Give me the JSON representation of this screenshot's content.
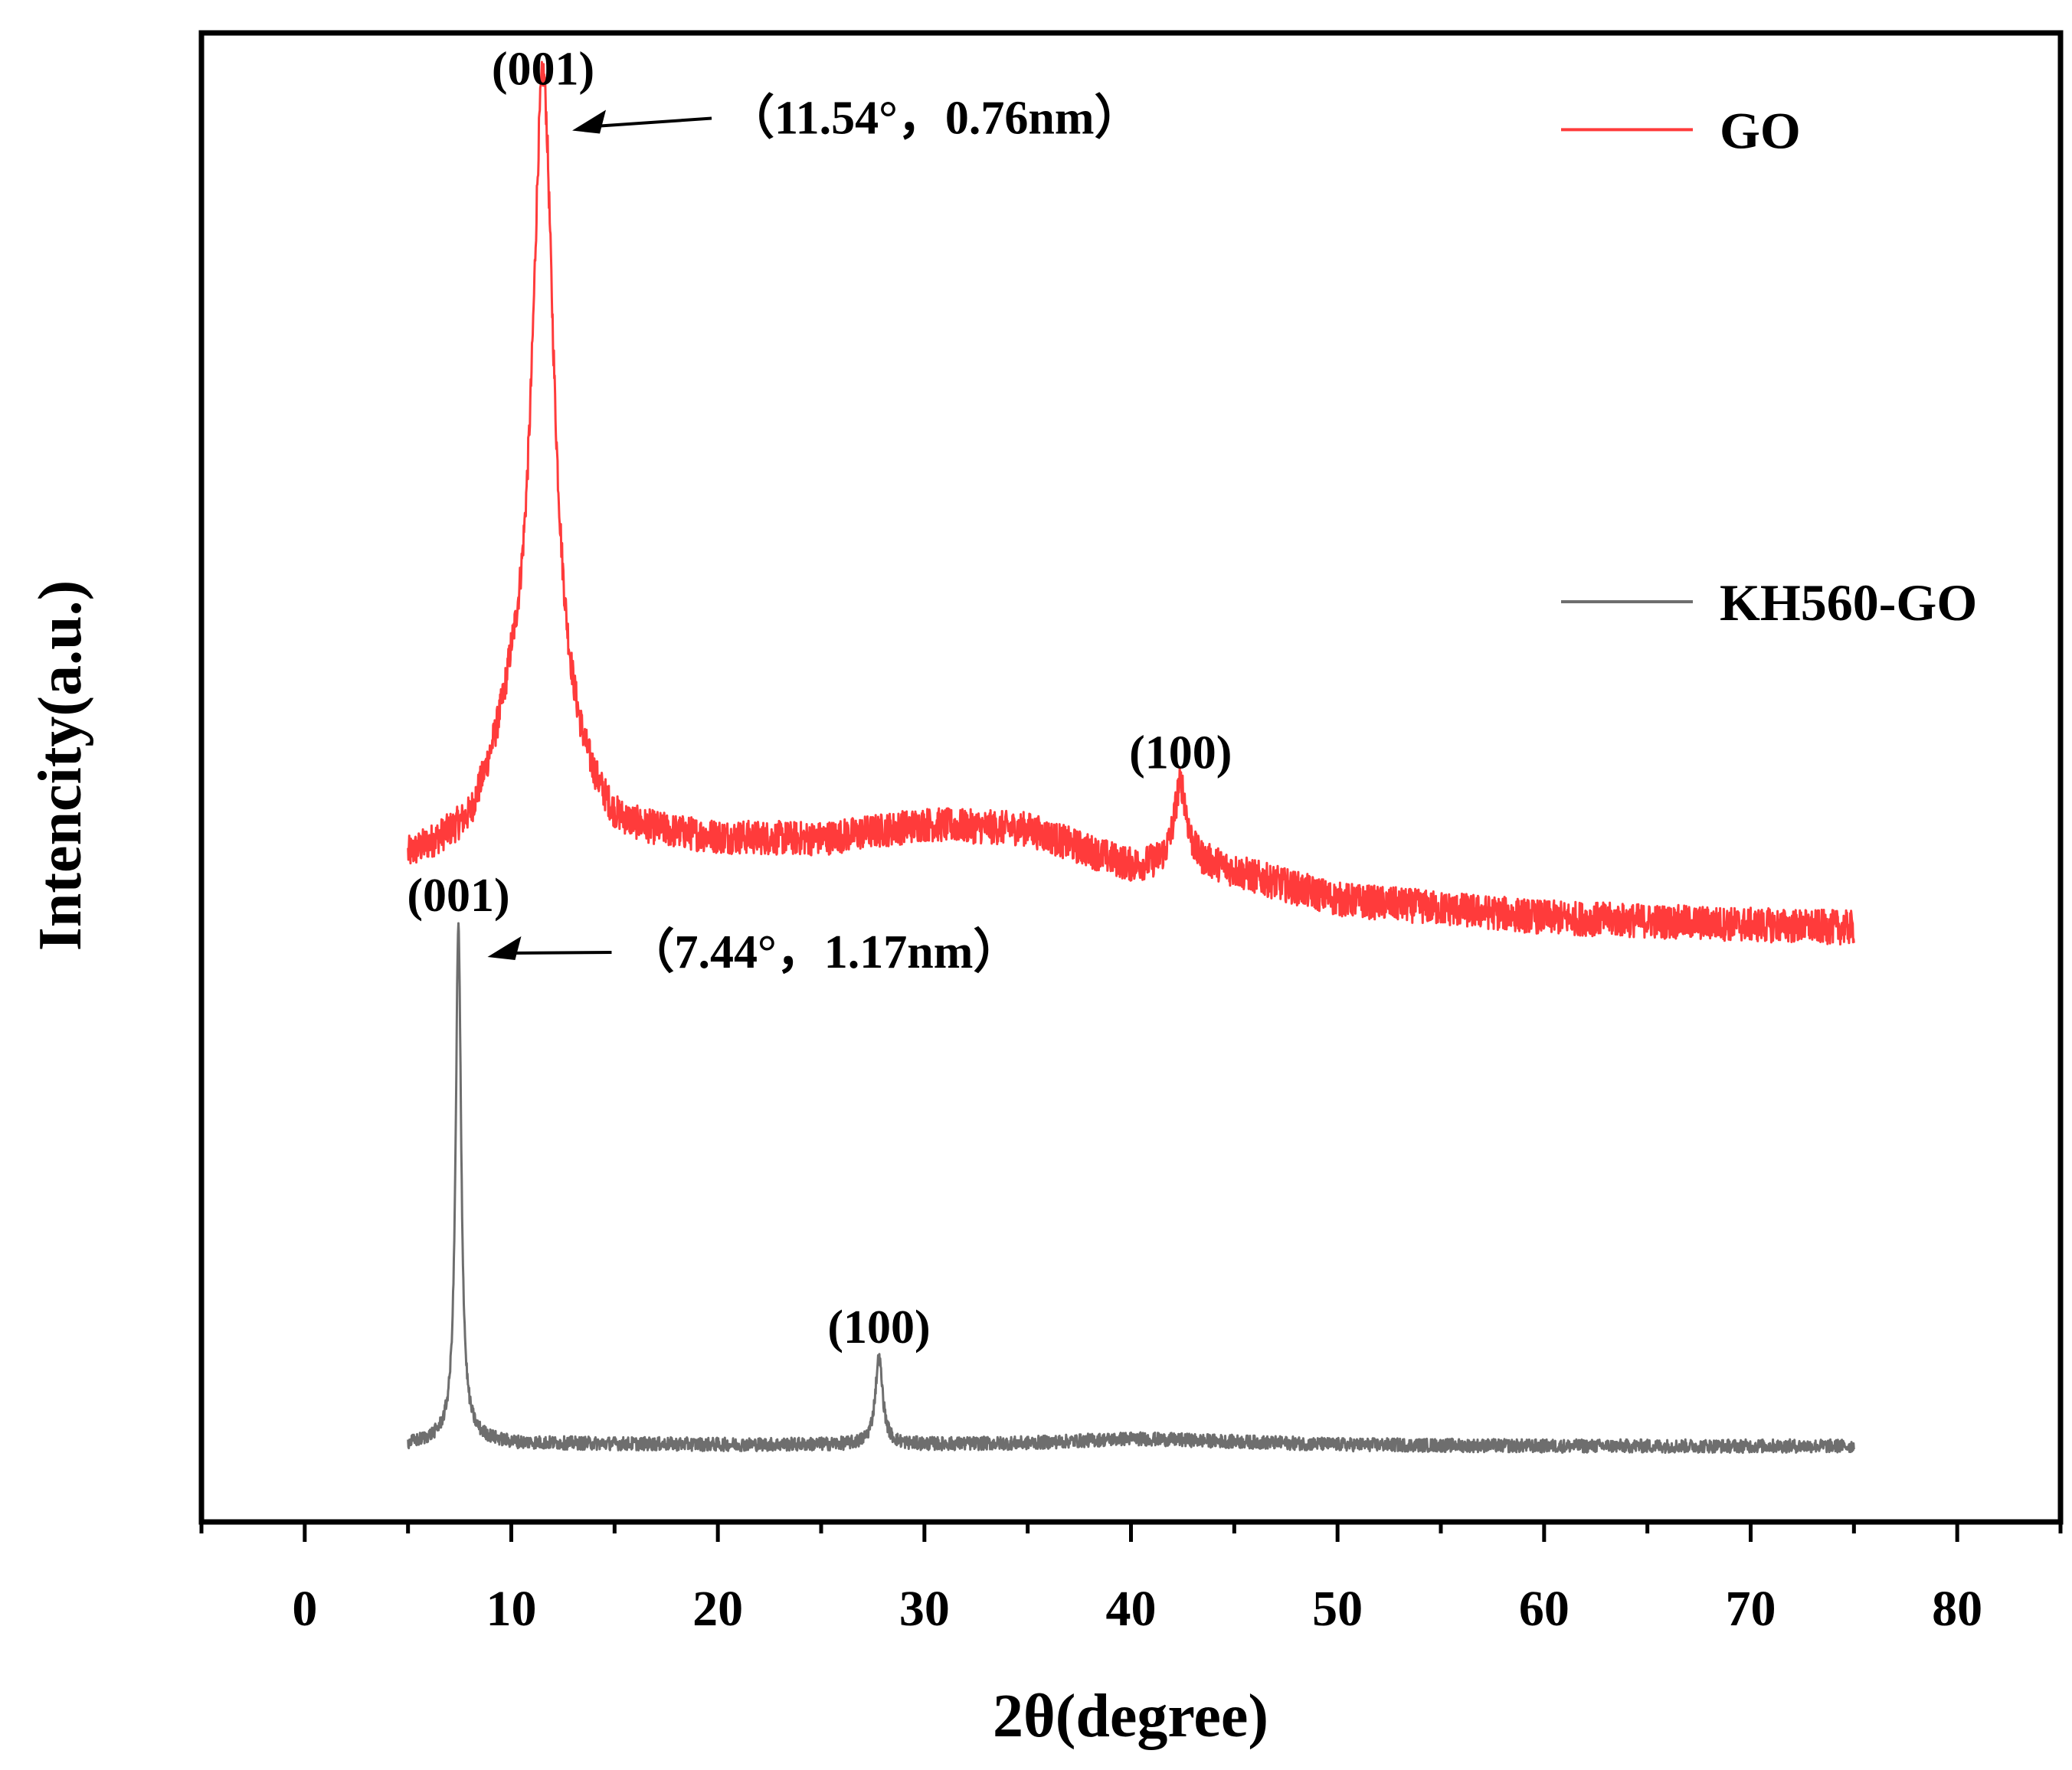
{
  "chart_data": {
    "type": "line",
    "title": "",
    "xlabel": "2θ(degree)",
    "ylabel": "Intencity(a.u.)",
    "xlim": [
      -5,
      85
    ],
    "ylim": [
      0,
      100
    ],
    "y_ticks_shown": false,
    "x_ticks": [
      0,
      10,
      20,
      30,
      40,
      50,
      60,
      70,
      80
    ],
    "x_tick_labels": [
      "0",
      "10",
      "20",
      "30",
      "40",
      "50",
      "60",
      "70",
      "80"
    ],
    "x_range_measured": [
      5,
      75
    ],
    "legend_position": "right",
    "series": [
      {
        "name": "GO",
        "color": "#ff3b3b",
        "baseline_points": [
          [
            5,
            44.5
          ],
          [
            8,
            46.2
          ],
          [
            10,
            51.5
          ],
          [
            11.54,
            95.5
          ],
          [
            13,
            48.5
          ],
          [
            15,
            46.2
          ],
          [
            20,
            45.8
          ],
          [
            25,
            45.8
          ],
          [
            30,
            46.8
          ],
          [
            35,
            46.5
          ],
          [
            40,
            44.0
          ],
          [
            42.4,
            49.6
          ],
          [
            44,
            44.0
          ],
          [
            50,
            41.8
          ],
          [
            60,
            40.6
          ],
          [
            70,
            40.1
          ],
          [
            75,
            39.9
          ]
        ],
        "peaks": [
          {
            "label": "(001)",
            "x": 11.54,
            "y": 95.5,
            "annotation": "（11.54°，0.76nm）"
          },
          {
            "label": "(100)",
            "x": 42.4,
            "y": 49.6
          }
        ]
      },
      {
        "name": "KH560-GO",
        "color": "#6e6e6e",
        "baseline_points": [
          [
            5,
            5.2
          ],
          [
            7,
            5.6
          ],
          [
            7.44,
            40.0
          ],
          [
            8,
            5.6
          ],
          [
            10,
            5.3
          ],
          [
            20,
            5.2
          ],
          [
            26,
            5.2
          ],
          [
            27.8,
            11.0
          ],
          [
            29,
            5.2
          ],
          [
            35,
            5.3
          ],
          [
            40,
            5.6
          ],
          [
            50,
            5.2
          ],
          [
            60,
            5.1
          ],
          [
            70,
            5.1
          ],
          [
            75,
            5.1
          ]
        ],
        "peaks": [
          {
            "label": "(001)",
            "x": 7.44,
            "y": 40.0,
            "annotation": "（7.44°，1.17nm）"
          },
          {
            "label": "(100)",
            "x": 27.8,
            "y": 11.0
          }
        ]
      }
    ]
  }
}
